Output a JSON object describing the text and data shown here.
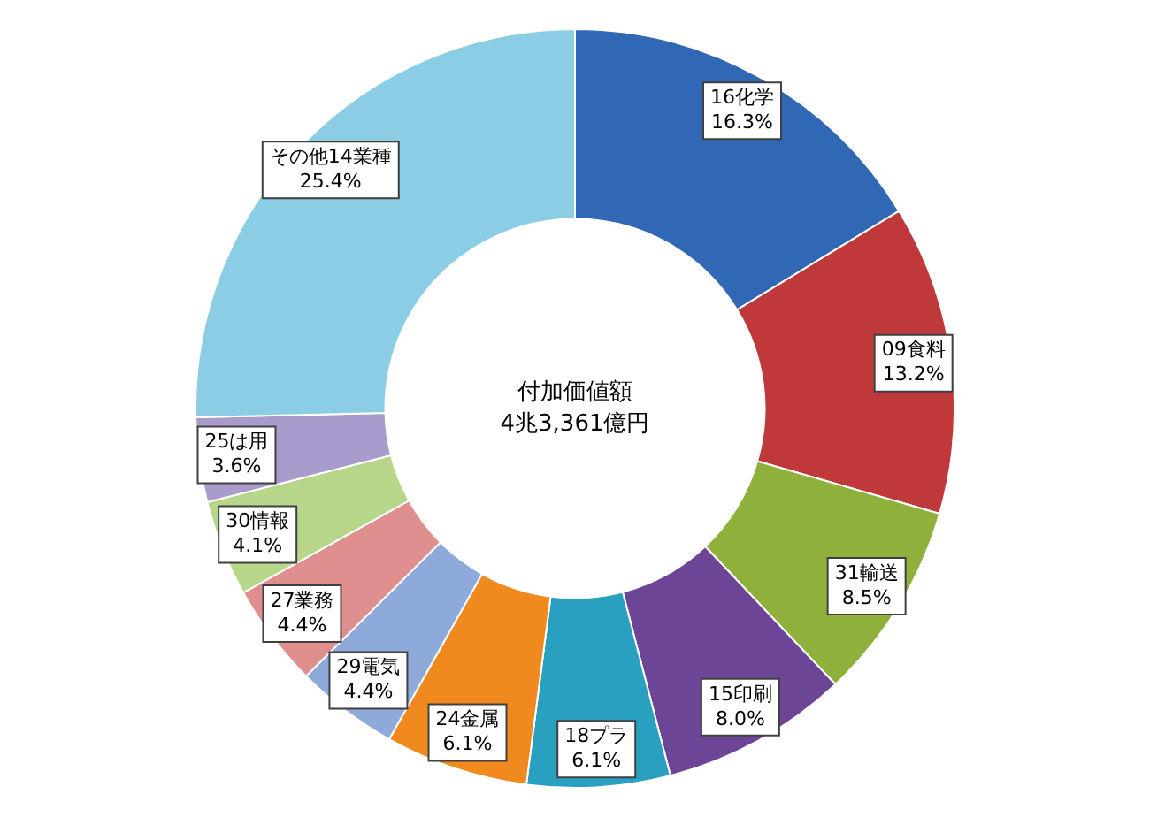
{
  "chart_data": {
    "type": "donut",
    "title": "付加価値額",
    "subtitle": "4兆3,361億円",
    "categories": [
      "16化学",
      "09食料",
      "31輸送",
      "15印刷",
      "18プラ",
      "24金属",
      "29電気",
      "27業務",
      "30情報",
      "25は用",
      "その他14業種"
    ],
    "values": [
      16.3,
      13.2,
      8.5,
      8.0,
      6.1,
      6.1,
      4.4,
      4.4,
      4.1,
      3.6,
      25.4
    ],
    "value_labels": [
      "16.3%",
      "13.2%",
      "8.5%",
      "8.0%",
      "6.1%",
      "6.1%",
      "4.4%",
      "4.4%",
      "4.1%",
      "3.6%",
      "25.4%"
    ],
    "colors": [
      "#3068b5",
      "#c0393a",
      "#8fb03b",
      "#6d4596",
      "#2aa0c0",
      "#f08a1e",
      "#8eaadb",
      "#e08f8f",
      "#b8d68a",
      "#a99ccc",
      "#8ccde6"
    ],
    "legend": false
  }
}
